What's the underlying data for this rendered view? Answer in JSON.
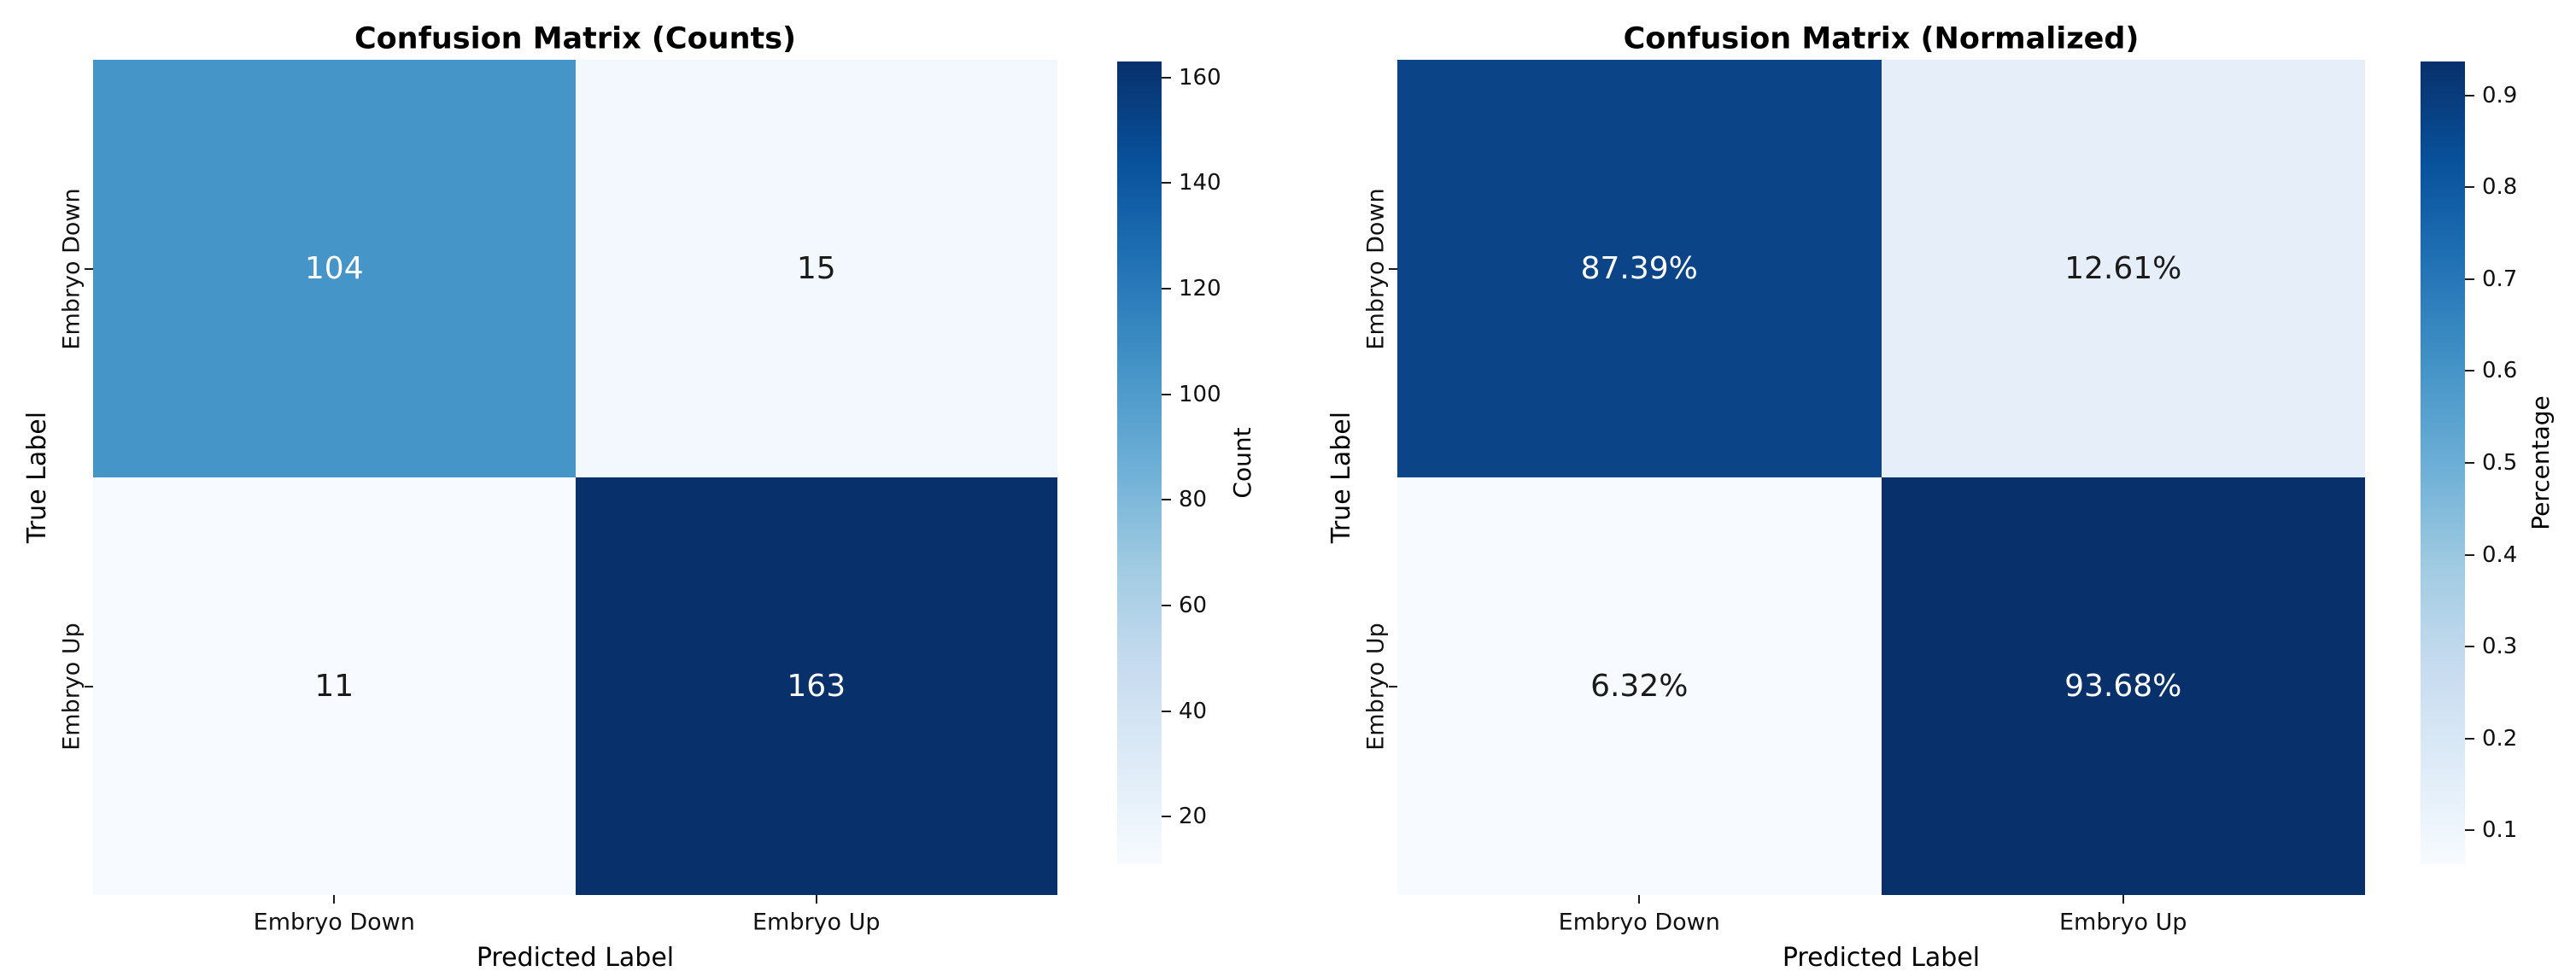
{
  "figure": {
    "background": "#ffffff",
    "text_color": "#000000"
  },
  "colormap": {
    "name": "Blues",
    "stops": [
      "#f7fbff",
      "#deebf7",
      "#c6dbef",
      "#9ecae1",
      "#6baed6",
      "#4292c6",
      "#2171b5",
      "#08519c",
      "#08306b"
    ]
  },
  "chart_data": [
    {
      "type": "heatmap",
      "title": "Confusion Matrix (Counts)",
      "xlabel": "Predicted Label",
      "ylabel": "True Label",
      "x_categories": [
        "Embryo Down",
        "Embryo Up"
      ],
      "y_categories": [
        "Embryo Down",
        "Embryo Up"
      ],
      "values": [
        [
          104,
          15
        ],
        [
          11,
          163
        ]
      ],
      "rows": [
        {
          "cells": [
            {
              "value": 104,
              "label": "104",
              "color": "#4695c8",
              "text_color": "#ffffff"
            },
            {
              "value": 15,
              "label": "15",
              "color": "#f2f8fd",
              "text_color": "#1b1b1b"
            }
          ]
        },
        {
          "cells": [
            {
              "value": 11,
              "label": "11",
              "color": "#f7fbff",
              "text_color": "#1b1b1b"
            },
            {
              "value": 163,
              "label": "163",
              "color": "#08306b",
              "text_color": "#ffffff"
            }
          ]
        }
      ],
      "colorbar": {
        "label": "Count",
        "vmin": 11,
        "vmax": 163,
        "ticks": [
          {
            "value": 20,
            "label": "20"
          },
          {
            "value": 40,
            "label": "40"
          },
          {
            "value": 60,
            "label": "60"
          },
          {
            "value": 80,
            "label": "80"
          },
          {
            "value": 100,
            "label": "100"
          },
          {
            "value": 120,
            "label": "120"
          },
          {
            "value": 140,
            "label": "140"
          },
          {
            "value": 160,
            "label": "160"
          }
        ]
      }
    },
    {
      "type": "heatmap",
      "title": "Confusion Matrix (Normalized)",
      "xlabel": "Predicted Label",
      "ylabel": "True Label",
      "x_categories": [
        "Embryo Down",
        "Embryo Up"
      ],
      "y_categories": [
        "Embryo Down",
        "Embryo Up"
      ],
      "values": [
        [
          0.8739,
          0.1261
        ],
        [
          0.0632,
          0.9368
        ]
      ],
      "rows": [
        {
          "cells": [
            {
              "value": 0.8739,
              "label": "87.39%",
              "color": "#0c4488",
              "text_color": "#ffffff"
            },
            {
              "value": 0.1261,
              "label": "12.61%",
              "color": "#e6eff9",
              "text_color": "#1b1b1b"
            }
          ]
        },
        {
          "cells": [
            {
              "value": 0.0632,
              "label": "6.32%",
              "color": "#f7fbff",
              "text_color": "#1b1b1b"
            },
            {
              "value": 0.9368,
              "label": "93.68%",
              "color": "#08306b",
              "text_color": "#ffffff"
            }
          ]
        }
      ],
      "colorbar": {
        "label": "Percentage",
        "vmin": 0.0632,
        "vmax": 0.9368,
        "ticks": [
          {
            "value": 0.1,
            "label": "0.1"
          },
          {
            "value": 0.2,
            "label": "0.2"
          },
          {
            "value": 0.3,
            "label": "0.3"
          },
          {
            "value": 0.4,
            "label": "0.4"
          },
          {
            "value": 0.5,
            "label": "0.5"
          },
          {
            "value": 0.6,
            "label": "0.6"
          },
          {
            "value": 0.7,
            "label": "0.7"
          },
          {
            "value": 0.8,
            "label": "0.8"
          },
          {
            "value": 0.9,
            "label": "0.9"
          }
        ]
      }
    }
  ]
}
